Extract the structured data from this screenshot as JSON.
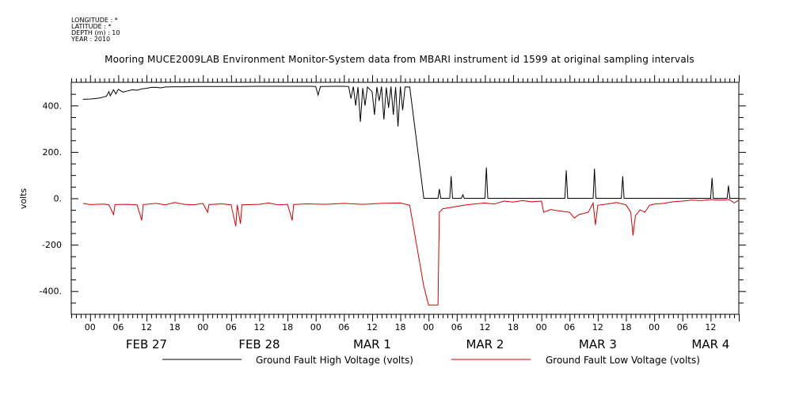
{
  "header": {
    "longitude": "LONGITUDE : *",
    "latitude": "LATITUDE : *",
    "depth": "DEPTH (m) : 10",
    "year": "YEAR : 2010"
  },
  "chart_data": {
    "type": "line",
    "title": "Mooring MUCE2009LAB Environment Monitor-System data from MBARI instrument id 1599 at original sampling intervals",
    "ylabel": "volts",
    "xlabel": "",
    "ylim": [
      -500,
      500
    ],
    "xlim_hours": [
      -4,
      138
    ],
    "y_ticks": [
      -400,
      -200,
      0,
      200,
      400
    ],
    "y_tick_labels": [
      "-400.",
      "-200",
      "0.",
      "200.",
      "400."
    ],
    "hour_tick_labels": [
      "00",
      "06",
      "12",
      "18",
      "00",
      "06",
      "12",
      "18",
      "00",
      "06",
      "12",
      "18",
      "00",
      "06",
      "12",
      "18",
      "00",
      "06",
      "12",
      "18",
      "00",
      "06",
      "12"
    ],
    "day_labels": [
      "FEB 27",
      "FEB 28",
      "MAR  1",
      "MAR  2",
      "MAR  3",
      "MAR  4"
    ],
    "grid": false,
    "legend_position": "bottom",
    "series": [
      {
        "name": "Ground Fault High Voltage (volts)",
        "color": "#000000",
        "points": [
          [
            -1.5,
            427
          ],
          [
            0,
            428
          ],
          [
            2,
            432
          ],
          [
            3.5,
            440
          ],
          [
            4,
            460
          ],
          [
            4.3,
            442
          ],
          [
            5,
            468
          ],
          [
            5.5,
            450
          ],
          [
            6,
            470
          ],
          [
            7,
            458
          ],
          [
            8,
            463
          ],
          [
            9,
            468
          ],
          [
            10,
            466
          ],
          [
            11,
            472
          ],
          [
            12,
            474
          ],
          [
            13,
            478
          ],
          [
            14,
            479
          ],
          [
            15,
            476
          ],
          [
            16,
            480
          ],
          [
            18,
            481
          ],
          [
            20,
            481
          ],
          [
            22,
            482
          ],
          [
            24,
            482
          ],
          [
            28,
            482
          ],
          [
            32,
            482
          ],
          [
            36,
            483
          ],
          [
            40,
            483
          ],
          [
            44,
            483
          ],
          [
            47,
            483
          ],
          [
            48,
            482
          ],
          [
            48.5,
            445
          ],
          [
            49,
            482
          ],
          [
            52,
            483
          ],
          [
            54,
            483
          ],
          [
            55,
            482
          ],
          [
            55.5,
            430
          ],
          [
            56,
            482
          ],
          [
            56.5,
            400
          ],
          [
            57,
            480
          ],
          [
            57.5,
            330
          ],
          [
            58,
            475
          ],
          [
            58.5,
            400
          ],
          [
            59,
            480
          ],
          [
            60,
            460
          ],
          [
            60.5,
            360
          ],
          [
            61,
            480
          ],
          [
            61.5,
            420
          ],
          [
            62,
            482
          ],
          [
            62.5,
            340
          ],
          [
            63,
            478
          ],
          [
            63.5,
            390
          ],
          [
            64,
            482
          ],
          [
            64.5,
            360
          ],
          [
            65,
            480
          ],
          [
            65.5,
            310
          ],
          [
            66,
            482
          ],
          [
            66.5,
            380
          ],
          [
            67,
            480
          ],
          [
            68,
            480
          ],
          [
            71,
            0
          ],
          [
            74,
            0
          ],
          [
            74.3,
            40
          ],
          [
            74.6,
            0
          ],
          [
            76.5,
            0
          ],
          [
            76.8,
            95
          ],
          [
            77.1,
            0
          ],
          [
            79,
            0
          ],
          [
            79.3,
            15
          ],
          [
            79.6,
            0
          ],
          [
            84,
            0
          ],
          [
            84.3,
            133
          ],
          [
            84.6,
            0
          ],
          [
            101,
            0
          ],
          [
            101.3,
            120
          ],
          [
            101.6,
            0
          ],
          [
            107,
            0
          ],
          [
            107.3,
            128
          ],
          [
            107.6,
            0
          ],
          [
            113,
            0
          ],
          [
            113.3,
            95
          ],
          [
            113.6,
            0
          ],
          [
            132,
            0
          ],
          [
            132.3,
            88
          ],
          [
            132.6,
            0
          ],
          [
            135.5,
            0
          ],
          [
            135.8,
            55
          ],
          [
            136.1,
            0
          ],
          [
            138,
            0
          ]
        ]
      },
      {
        "name": "Ground Fault Low Voltage (volts)",
        "color": "#d80000",
        "points": [
          [
            -1.5,
            -22
          ],
          [
            0,
            -27
          ],
          [
            3,
            -25
          ],
          [
            4,
            -28
          ],
          [
            5,
            -70
          ],
          [
            5.3,
            -27
          ],
          [
            8,
            -26
          ],
          [
            10,
            -28
          ],
          [
            11,
            -95
          ],
          [
            11.3,
            -27
          ],
          [
            14,
            -22
          ],
          [
            16,
            -28
          ],
          [
            18,
            -18
          ],
          [
            20,
            -26
          ],
          [
            22,
            -28
          ],
          [
            24,
            -22
          ],
          [
            25,
            -60
          ],
          [
            25.3,
            -27
          ],
          [
            28,
            -24
          ],
          [
            30,
            -28
          ],
          [
            31,
            -120
          ],
          [
            31.3,
            -28
          ],
          [
            32,
            -110
          ],
          [
            32.3,
            -28
          ],
          [
            36,
            -26
          ],
          [
            38,
            -20
          ],
          [
            40,
            -28
          ],
          [
            42,
            -26
          ],
          [
            43,
            -95
          ],
          [
            43.3,
            -27
          ],
          [
            46,
            -24
          ],
          [
            50,
            -26
          ],
          [
            54,
            -22
          ],
          [
            58,
            -26
          ],
          [
            62,
            -22
          ],
          [
            66,
            -20
          ],
          [
            68,
            -30
          ],
          [
            71,
            -380
          ],
          [
            72,
            -460
          ],
          [
            74,
            -460
          ],
          [
            74.3,
            -60
          ],
          [
            75,
            -45
          ],
          [
            78,
            -35
          ],
          [
            80,
            -28
          ],
          [
            84,
            -20
          ],
          [
            86,
            -25
          ],
          [
            88,
            -12
          ],
          [
            90,
            -16
          ],
          [
            92,
            -10
          ],
          [
            94,
            -15
          ],
          [
            96,
            -12
          ],
          [
            96.5,
            -60
          ],
          [
            98,
            -48
          ],
          [
            100,
            -55
          ],
          [
            102,
            -60
          ],
          [
            103,
            -85
          ],
          [
            104,
            -70
          ],
          [
            106,
            -60
          ],
          [
            107,
            -20
          ],
          [
            107.5,
            -115
          ],
          [
            108,
            -30
          ],
          [
            110,
            -25
          ],
          [
            112,
            -18
          ],
          [
            114,
            -28
          ],
          [
            115,
            -60
          ],
          [
            115.5,
            -160
          ],
          [
            116,
            -75
          ],
          [
            117,
            -50
          ],
          [
            118,
            -60
          ],
          [
            119,
            -30
          ],
          [
            120,
            -25
          ],
          [
            122,
            -22
          ],
          [
            124,
            -15
          ],
          [
            126,
            -12
          ],
          [
            128,
            -8
          ],
          [
            130,
            -10
          ],
          [
            132,
            -5
          ],
          [
            134,
            -8
          ],
          [
            136,
            -5
          ],
          [
            137,
            -20
          ],
          [
            138,
            -8
          ]
        ]
      }
    ]
  }
}
